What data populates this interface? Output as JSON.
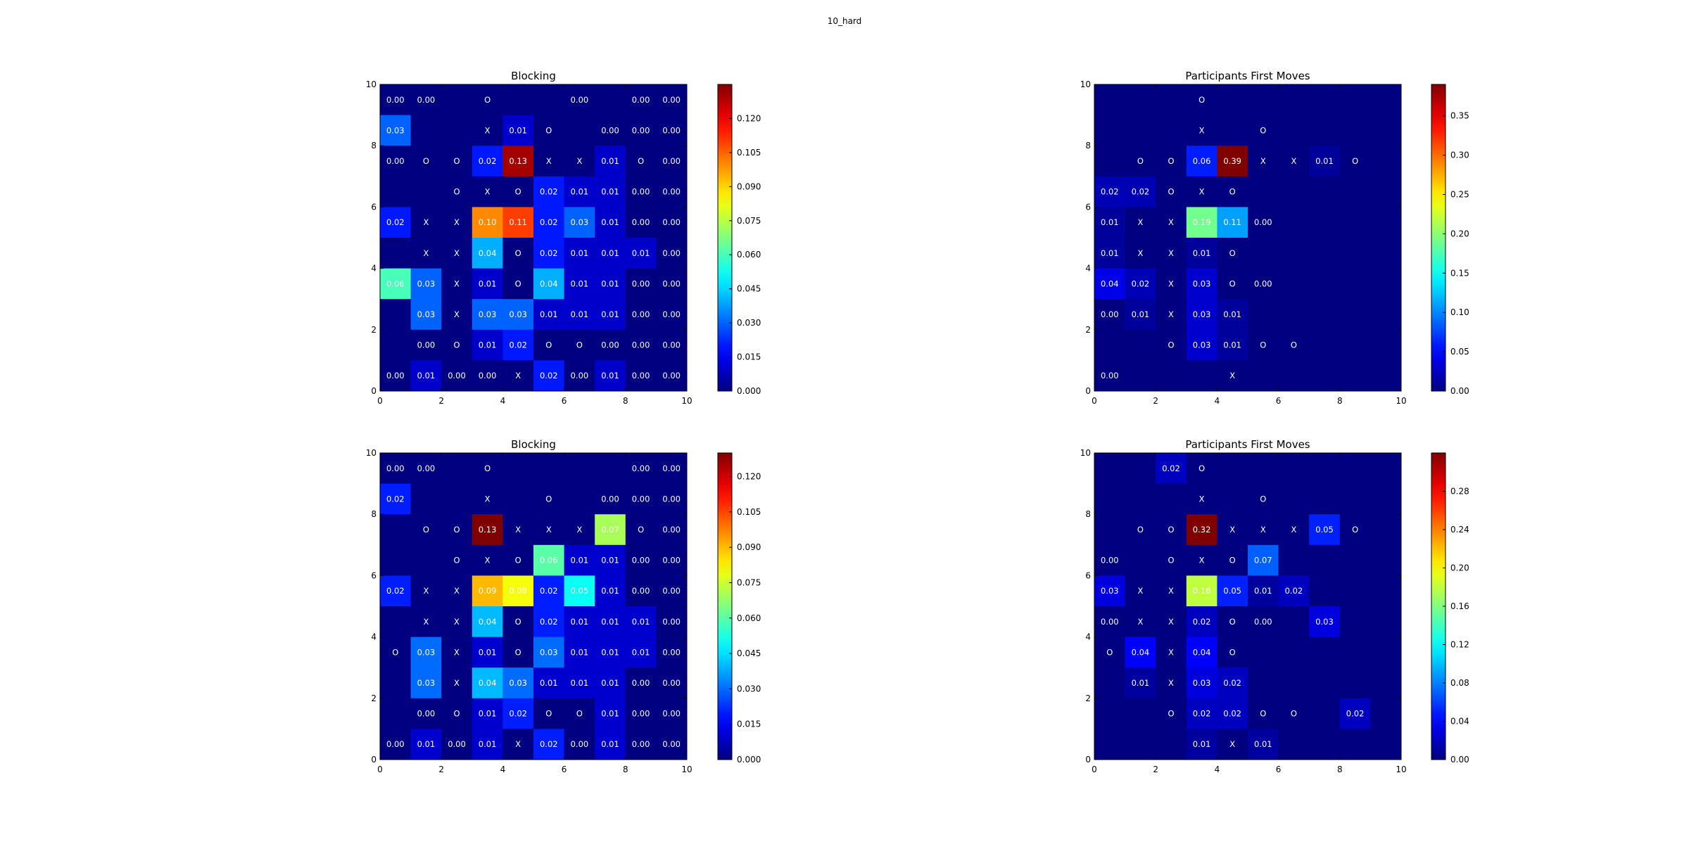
{
  "figure": {
    "title": "10_hard"
  },
  "chart_data": [
    {
      "type": "heatmap",
      "title": "Blocking",
      "xlim": [
        0,
        10
      ],
      "ylim": [
        0,
        10
      ],
      "xticks": [
        "0",
        "2",
        "4",
        "6",
        "8",
        "10"
      ],
      "yticks": [
        "0",
        "2",
        "4",
        "6",
        "8",
        "10"
      ],
      "vmax": 0.135,
      "colorbar_ticks": [
        "0.000",
        "0.015",
        "0.030",
        "0.045",
        "0.060",
        "0.075",
        "0.090",
        "0.105",
        "0.120"
      ],
      "colorbar_tick_values": [
        0.0,
        0.015,
        0.03,
        0.045,
        0.06,
        0.075,
        0.09,
        0.105,
        0.12
      ],
      "rows": [
        [
          "0.00",
          "0.00",
          "",
          "O",
          "",
          "",
          "0.00",
          "",
          "0.00",
          "0.00"
        ],
        [
          "0.03",
          "",
          "",
          "X",
          "0.01",
          "O",
          "",
          "0.00",
          "0.00",
          "0.00"
        ],
        [
          "0.00",
          "O",
          "O",
          "0.02",
          "0.13",
          "X",
          "X",
          "0.01",
          "O",
          "0.00"
        ],
        [
          "",
          "",
          "O",
          "X",
          "O",
          "0.02",
          "0.01",
          "0.01",
          "0.00",
          "0.00"
        ],
        [
          "0.02",
          "X",
          "X",
          "0.10",
          "0.11",
          "0.02",
          "0.03",
          "0.01",
          "0.00",
          "0.00"
        ],
        [
          "",
          "X",
          "X",
          "0.04",
          "O",
          "0.02",
          "0.01",
          "0.01",
          "0.01",
          "0.00"
        ],
        [
          "0.06",
          "0.03",
          "X",
          "0.01",
          "O",
          "0.04",
          "0.01",
          "0.01",
          "0.00",
          "0.00"
        ],
        [
          "",
          "0.03",
          "X",
          "0.03",
          "0.03",
          "0.01",
          "0.01",
          "0.01",
          "0.00",
          "0.00"
        ],
        [
          "",
          "0.00",
          "O",
          "0.01",
          "0.02",
          "O",
          "O",
          "0.00",
          "0.00",
          "0.00"
        ],
        [
          "0.00",
          "0.01",
          "0.00",
          "0.00",
          "X",
          "0.02",
          "0.00",
          "0.01",
          "0.00",
          "0.00"
        ]
      ]
    },
    {
      "type": "heatmap",
      "title": "Participants First Moves",
      "xlim": [
        0,
        10
      ],
      "ylim": [
        0,
        10
      ],
      "xticks": [
        "0",
        "2",
        "4",
        "6",
        "8",
        "10"
      ],
      "yticks": [
        "0",
        "2",
        "4",
        "6",
        "8",
        "10"
      ],
      "vmax": 0.39,
      "colorbar_ticks": [
        "0.00",
        "0.05",
        "0.10",
        "0.15",
        "0.20",
        "0.25",
        "0.30",
        "0.35"
      ],
      "colorbar_tick_values": [
        0.0,
        0.05,
        0.1,
        0.15,
        0.2,
        0.25,
        0.3,
        0.35
      ],
      "rows": [
        [
          "",
          "",
          "",
          "O",
          "",
          "",
          "",
          "",
          "",
          ""
        ],
        [
          "",
          "",
          "",
          "X",
          "",
          "O",
          "",
          "",
          "",
          ""
        ],
        [
          "",
          "O",
          "O",
          "0.06",
          "0.39",
          "X",
          "X",
          "0.01",
          "O",
          ""
        ],
        [
          "0.02",
          "0.02",
          "O",
          "X",
          "O",
          "",
          "",
          "",
          "",
          ""
        ],
        [
          "0.01",
          "X",
          "X",
          "0.19",
          "0.11",
          "0.00",
          "",
          "",
          "",
          ""
        ],
        [
          "0.01",
          "X",
          "X",
          "0.01",
          "O",
          "",
          "",
          "",
          "",
          ""
        ],
        [
          "0.04",
          "0.02",
          "X",
          "0.03",
          "O",
          "0.00",
          "",
          "",
          "",
          ""
        ],
        [
          "0.00",
          "0.01",
          "X",
          "0.03",
          "0.01",
          "",
          "",
          "",
          "",
          ""
        ],
        [
          "",
          "",
          "O",
          "0.03",
          "0.01",
          "O",
          "O",
          "",
          "",
          ""
        ],
        [
          "0.00",
          "",
          "",
          "",
          "X",
          "",
          "",
          "",
          "",
          ""
        ]
      ]
    },
    {
      "type": "heatmap",
      "title": "Blocking",
      "xlim": [
        0,
        10
      ],
      "ylim": [
        0,
        10
      ],
      "xticks": [
        "0",
        "2",
        "4",
        "6",
        "8",
        "10"
      ],
      "yticks": [
        "0",
        "2",
        "4",
        "6",
        "8",
        "10"
      ],
      "vmax": 0.13,
      "colorbar_ticks": [
        "0.000",
        "0.015",
        "0.030",
        "0.045",
        "0.060",
        "0.075",
        "0.090",
        "0.105",
        "0.120"
      ],
      "colorbar_tick_values": [
        0.0,
        0.015,
        0.03,
        0.045,
        0.06,
        0.075,
        0.09,
        0.105,
        0.12
      ],
      "rows": [
        [
          "0.00",
          "0.00",
          "",
          "O",
          "",
          "",
          "",
          "",
          "0.00",
          "0.00"
        ],
        [
          "0.02",
          "",
          "",
          "X",
          "",
          "O",
          "",
          "0.00",
          "0.00",
          "0.00"
        ],
        [
          "",
          "O",
          "O",
          "0.13",
          "X",
          "X",
          "X",
          "0.07",
          "O",
          "0.00"
        ],
        [
          "",
          "",
          "O",
          "X",
          "O",
          "0.06",
          "0.01",
          "0.01",
          "0.00",
          "0.00"
        ],
        [
          "0.02",
          "X",
          "X",
          "0.09",
          "0.08",
          "0.02",
          "0.05",
          "0.01",
          "0.00",
          "0.00"
        ],
        [
          "",
          "X",
          "X",
          "0.04",
          "O",
          "0.02",
          "0.01",
          "0.01",
          "0.01",
          "0.00"
        ],
        [
          "O",
          "0.03",
          "X",
          "0.01",
          "O",
          "0.03",
          "0.01",
          "0.01",
          "0.01",
          "0.00"
        ],
        [
          "",
          "0.03",
          "X",
          "0.04",
          "0.03",
          "0.01",
          "0.01",
          "0.01",
          "0.00",
          "0.00"
        ],
        [
          "",
          "0.00",
          "O",
          "0.01",
          "0.02",
          "O",
          "O",
          "0.01",
          "0.00",
          "0.00"
        ],
        [
          "0.00",
          "0.01",
          "0.00",
          "0.01",
          "X",
          "0.02",
          "0.00",
          "0.01",
          "0.00",
          "0.00"
        ]
      ]
    },
    {
      "type": "heatmap",
      "title": "Participants First Moves",
      "xlim": [
        0,
        10
      ],
      "ylim": [
        0,
        10
      ],
      "xticks": [
        "0",
        "2",
        "4",
        "6",
        "8",
        "10"
      ],
      "yticks": [
        "0",
        "2",
        "4",
        "6",
        "8",
        "10"
      ],
      "vmax": 0.32,
      "colorbar_ticks": [
        "0.00",
        "0.04",
        "0.08",
        "0.12",
        "0.16",
        "0.20",
        "0.24",
        "0.28"
      ],
      "colorbar_tick_values": [
        0.0,
        0.04,
        0.08,
        0.12,
        0.16,
        0.2,
        0.24,
        0.28
      ],
      "rows": [
        [
          "",
          "",
          "0.02",
          "O",
          "",
          "",
          "",
          "",
          "",
          ""
        ],
        [
          "",
          "",
          "",
          "X",
          "",
          "O",
          "",
          "",
          "",
          ""
        ],
        [
          "",
          "O",
          "O",
          "0.32",
          "X",
          "X",
          "X",
          "0.05",
          "O",
          ""
        ],
        [
          "0.00",
          "",
          "O",
          "X",
          "O",
          "0.07",
          "",
          "",
          "",
          ""
        ],
        [
          "0.03",
          "X",
          "X",
          "0.18",
          "0.05",
          "0.01",
          "0.02",
          "",
          "",
          ""
        ],
        [
          "0.00",
          "X",
          "X",
          "0.02",
          "O",
          "0.00",
          "",
          "0.03",
          "",
          ""
        ],
        [
          "O",
          "0.04",
          "X",
          "0.04",
          "O",
          "",
          "",
          "",
          "",
          ""
        ],
        [
          "",
          "0.01",
          "X",
          "0.03",
          "0.02",
          "",
          "",
          "",
          "",
          ""
        ],
        [
          "",
          "",
          "O",
          "0.02",
          "0.02",
          "O",
          "O",
          "",
          "0.02",
          ""
        ],
        [
          "",
          "",
          "",
          "0.01",
          "X",
          "0.01",
          "",
          "",
          "",
          ""
        ]
      ]
    }
  ]
}
